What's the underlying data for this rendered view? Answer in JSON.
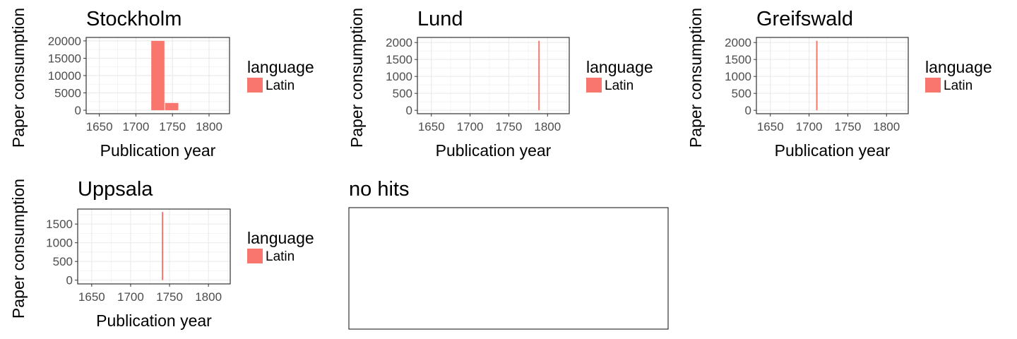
{
  "chart_data": [
    {
      "type": "bar",
      "title": "Stockholm",
      "xlabel": "Publication year",
      "ylabel": "Paper consumption",
      "xlim": [
        1632,
        1828
      ],
      "ylim": [
        -1000,
        21000
      ],
      "xticks": [
        1650,
        1700,
        1750,
        1800
      ],
      "yticks": [
        0,
        5000,
        10000,
        15000,
        20000
      ],
      "bin_width": 18,
      "bars": [
        {
          "x": 1730,
          "value": 20000
        },
        {
          "x": 1749,
          "value": 2100
        }
      ],
      "legend": {
        "title": "language",
        "items": [
          {
            "label": "Latin",
            "color": "#F8766D"
          }
        ],
        "placement": "right"
      },
      "grid": true
    },
    {
      "type": "bar",
      "title": "Lund",
      "xlabel": "Publication year",
      "ylabel": "Paper consumption",
      "xlim": [
        1632,
        1828
      ],
      "ylim": [
        -100,
        2150
      ],
      "xticks": [
        1650,
        1700,
        1750,
        1800
      ],
      "yticks": [
        0,
        500,
        1000,
        1500,
        2000
      ],
      "bin_width": 1,
      "bars": [
        {
          "x": 1789,
          "value": 2050
        }
      ],
      "legend": {
        "title": "language",
        "items": [
          {
            "label": "Latin",
            "color": "#F8766D"
          }
        ],
        "placement": "right"
      },
      "grid": true
    },
    {
      "type": "bar",
      "title": "Greifswald",
      "xlabel": "Publication year",
      "ylabel": "Paper consumption",
      "xlim": [
        1632,
        1828
      ],
      "ylim": [
        -100,
        2150
      ],
      "xticks": [
        1650,
        1700,
        1750,
        1800
      ],
      "yticks": [
        0,
        500,
        1000,
        1500,
        2000
      ],
      "bin_width": 1,
      "bars": [
        {
          "x": 1710,
          "value": 2050
        }
      ],
      "legend": {
        "title": "language",
        "items": [
          {
            "label": "Latin",
            "color": "#F8766D"
          }
        ],
        "placement": "right"
      },
      "grid": true
    },
    {
      "type": "bar",
      "title": "Uppsala",
      "xlabel": "Publication year",
      "ylabel": "Paper consumption",
      "xlim": [
        1632,
        1828
      ],
      "ylim": [
        -100,
        1900
      ],
      "xticks": [
        1650,
        1700,
        1750,
        1800
      ],
      "yticks": [
        0,
        500,
        1000,
        1500
      ],
      "bin_width": 1,
      "bars": [
        {
          "x": 1741,
          "value": 1820
        }
      ],
      "legend": {
        "title": "language",
        "items": [
          {
            "label": "Latin",
            "color": "#F8766D"
          }
        ],
        "placement": "right"
      },
      "grid": true
    },
    {
      "type": "table",
      "title": "no hits"
    }
  ]
}
